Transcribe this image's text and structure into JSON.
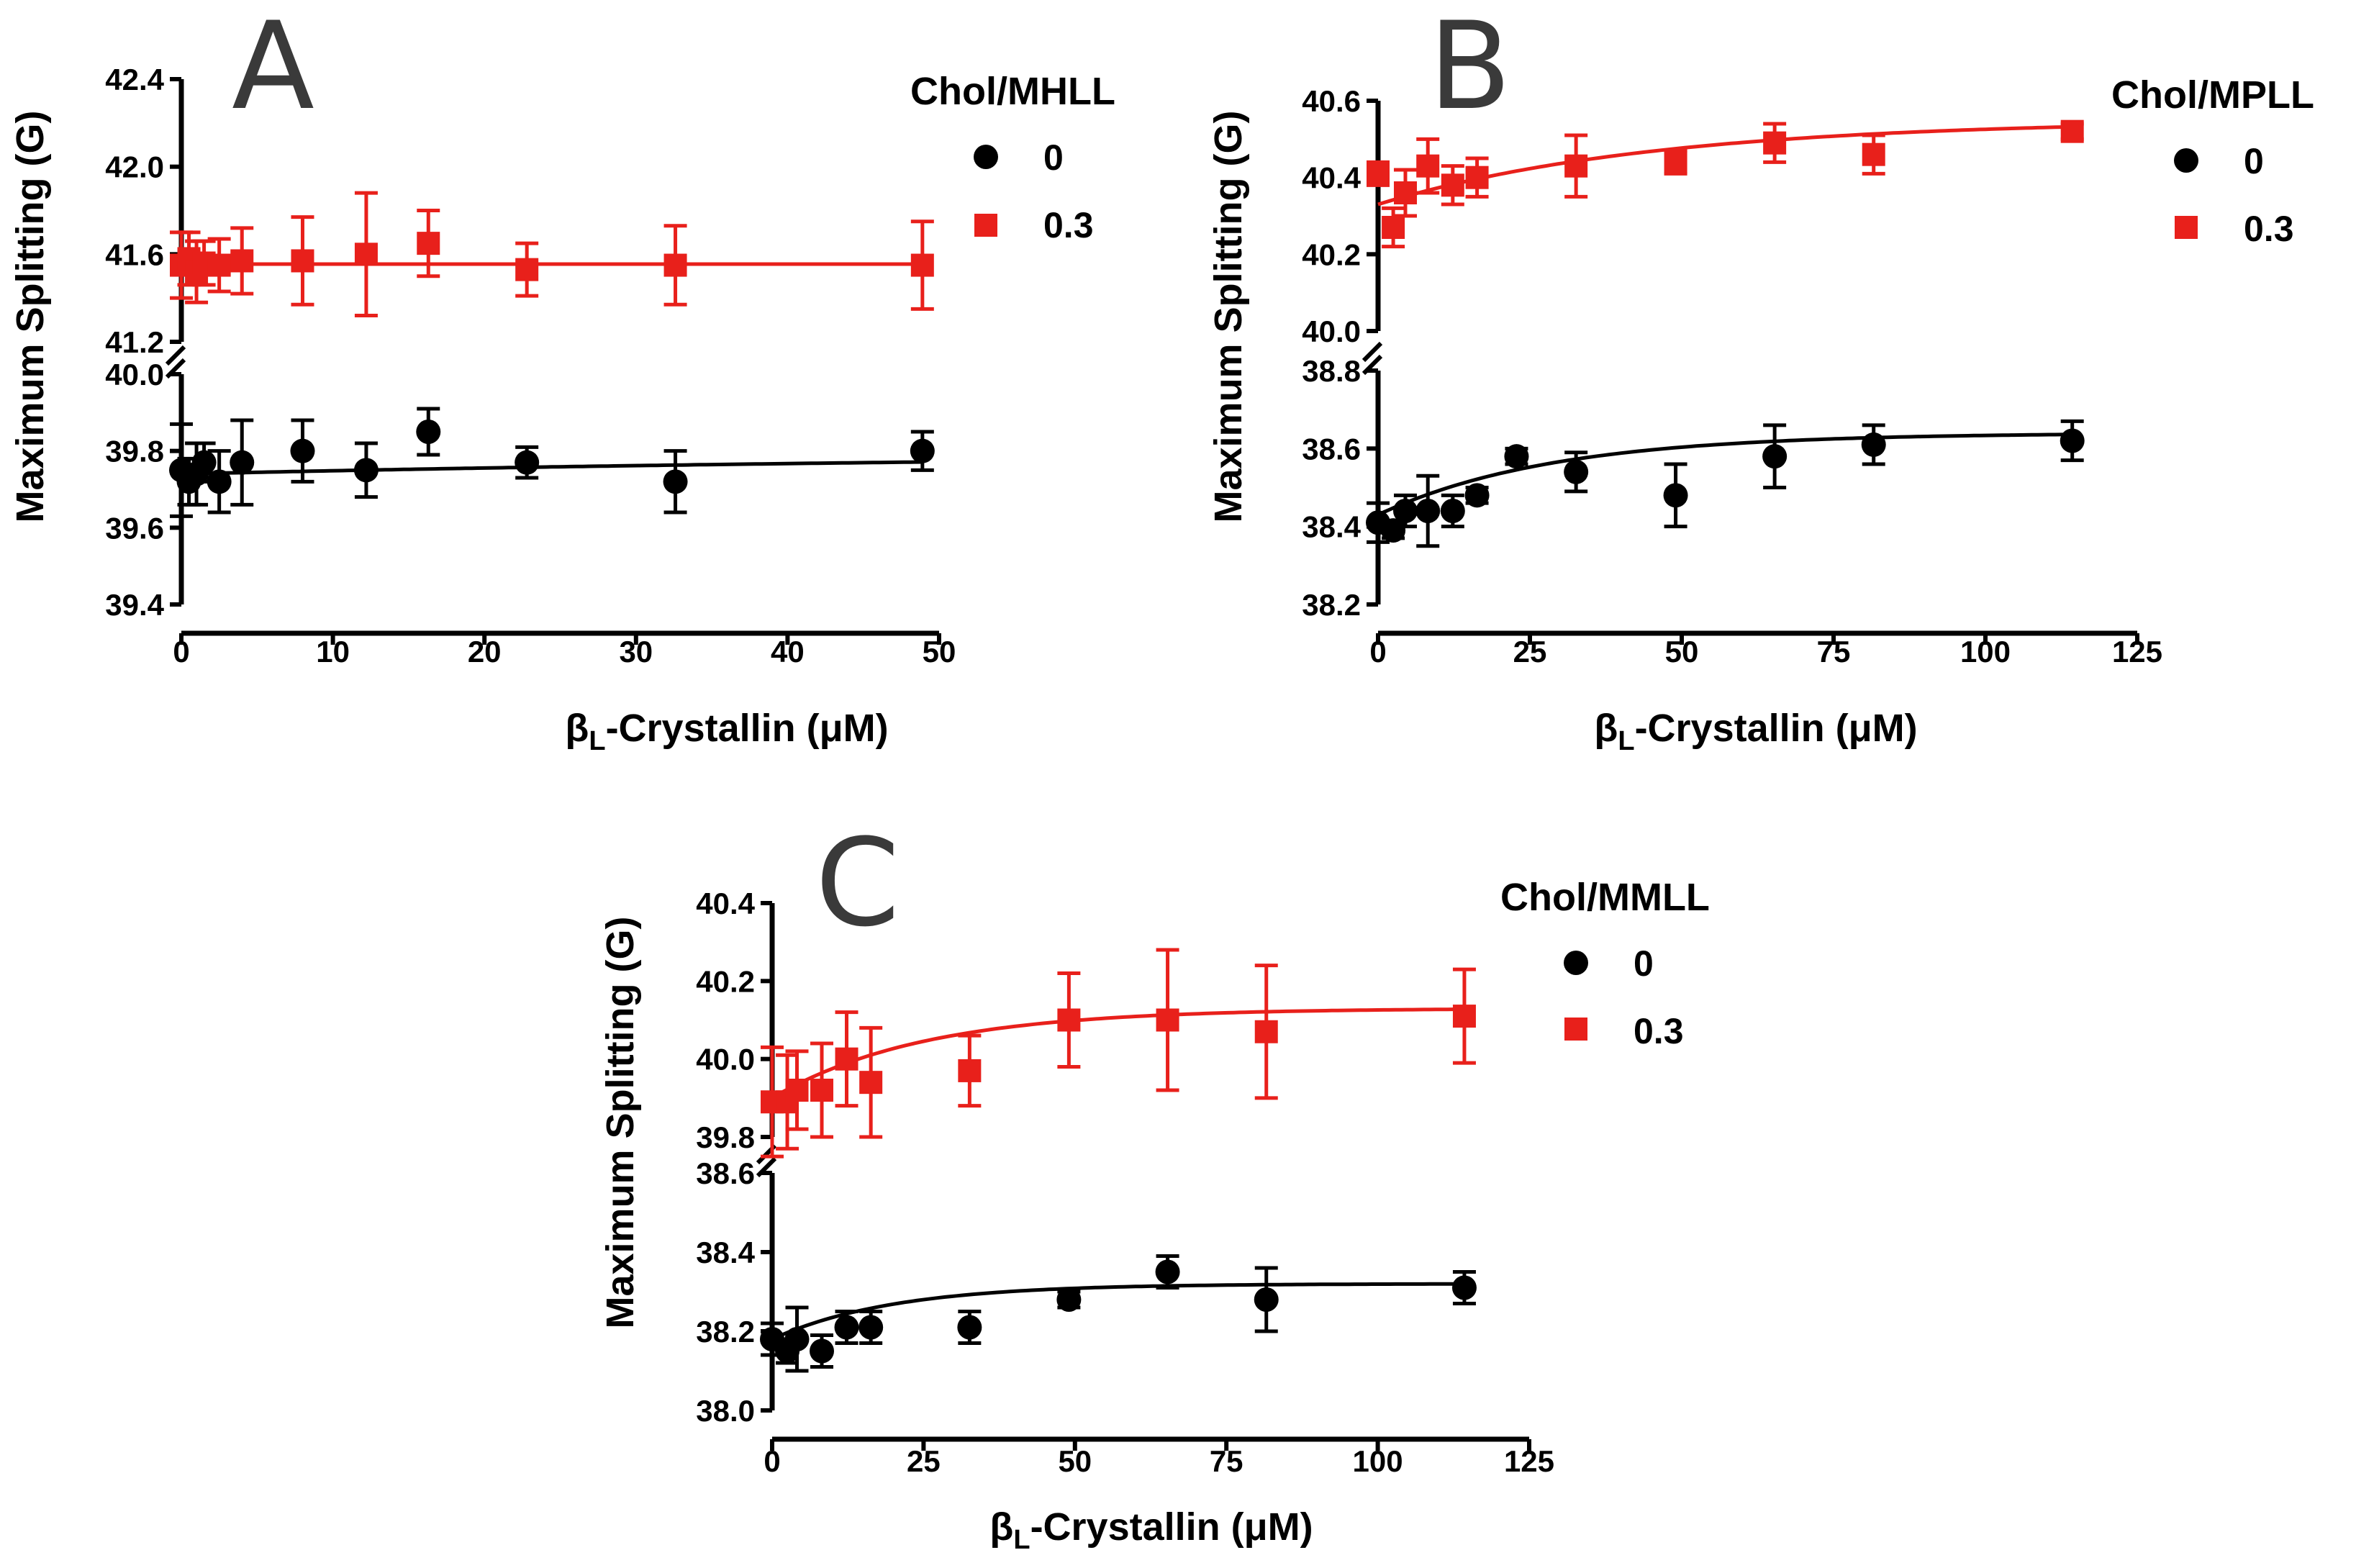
{
  "colors": {
    "series0": "#000000",
    "series03": "#e8201b",
    "axis": "#000000",
    "panel_letter": "#3a3a3a"
  },
  "chart_data": [
    {
      "panel": "A",
      "type": "scatter",
      "legend_title": "Chol/MHLL",
      "legend_position": "top-right",
      "xlabel": {
        "main": "β",
        "sub": "L",
        "rest": "-Crystallin (μM)"
      },
      "ylabel": "Maximum Splitting (G)",
      "xlim": [
        0,
        50
      ],
      "x_ticks": [
        "0",
        "10",
        "20",
        "30",
        "40",
        "50"
      ],
      "y_break": true,
      "ylim_lower": [
        39.4,
        40.0
      ],
      "y_ticks_lower": [
        "39.4",
        "39.6",
        "39.8",
        "40.0"
      ],
      "ylim_upper": [
        41.2,
        42.4
      ],
      "y_ticks_upper": [
        "41.2",
        "41.6",
        "42.0",
        "42.4"
      ],
      "series": [
        {
          "name": "0",
          "marker": "circle",
          "color": "#000000",
          "segment": "lower",
          "points": [
            {
              "x": 0,
              "y": 39.75,
              "err": 0.12
            },
            {
              "x": 0.5,
              "y": 39.72,
              "err": 0.06
            },
            {
              "x": 1,
              "y": 39.74,
              "err": 0.08
            },
            {
              "x": 1.5,
              "y": 39.77,
              "err": 0.05
            },
            {
              "x": 2.5,
              "y": 39.72,
              "err": 0.08
            },
            {
              "x": 4,
              "y": 39.77,
              "err": 0.11
            },
            {
              "x": 8,
              "y": 39.8,
              "err": 0.08
            },
            {
              "x": 12.2,
              "y": 39.75,
              "err": 0.07
            },
            {
              "x": 16.3,
              "y": 39.85,
              "err": 0.06
            },
            {
              "x": 22.8,
              "y": 39.77,
              "err": 0.04
            },
            {
              "x": 32.6,
              "y": 39.72,
              "err": 0.08
            },
            {
              "x": 48.9,
              "y": 39.8,
              "err": 0.05
            }
          ],
          "fit": {
            "y0": 39.74,
            "ymax": 39.8,
            "k": 0.015
          }
        },
        {
          "name": "0.3",
          "marker": "square",
          "color": "#e8201b",
          "segment": "upper",
          "points": [
            {
              "x": 0,
              "y": 41.55,
              "err": 0.15
            },
            {
              "x": 0.5,
              "y": 41.58,
              "err": 0.12
            },
            {
              "x": 1,
              "y": 41.52,
              "err": 0.14
            },
            {
              "x": 1.5,
              "y": 41.56,
              "err": 0.1
            },
            {
              "x": 2.5,
              "y": 41.55,
              "err": 0.12
            },
            {
              "x": 4,
              "y": 41.57,
              "err": 0.15
            },
            {
              "x": 8,
              "y": 41.57,
              "err": 0.2
            },
            {
              "x": 12.2,
              "y": 41.6,
              "err": 0.28
            },
            {
              "x": 16.3,
              "y": 41.65,
              "err": 0.15
            },
            {
              "x": 22.8,
              "y": 41.53,
              "err": 0.12
            },
            {
              "x": 32.6,
              "y": 41.55,
              "err": 0.18
            },
            {
              "x": 48.9,
              "y": 41.55,
              "err": 0.2
            }
          ],
          "fit": {
            "y0": 41.555,
            "ymax": 41.555,
            "k": 0.1
          }
        }
      ]
    },
    {
      "panel": "B",
      "type": "scatter",
      "legend_title": "Chol/MPLL",
      "legend_position": "top-right",
      "xlabel": {
        "main": "β",
        "sub": "L",
        "rest": "-Crystallin (μM)"
      },
      "ylabel": "Maximum Splitting (G)",
      "xlim": [
        0,
        125
      ],
      "x_ticks": [
        "0",
        "25",
        "50",
        "75",
        "100",
        "125"
      ],
      "y_break": true,
      "ylim_lower": [
        38.2,
        38.8
      ],
      "y_ticks_lower": [
        "38.2",
        "38.4",
        "38.6",
        "38.8"
      ],
      "ylim_upper": [
        40.0,
        40.6
      ],
      "y_ticks_upper": [
        "40.0",
        "40.2",
        "40.4",
        "40.6"
      ],
      "series": [
        {
          "name": "0",
          "marker": "circle",
          "color": "#000000",
          "segment": "lower",
          "points": [
            {
              "x": 0,
              "y": 38.41,
              "err": 0.05
            },
            {
              "x": 2.5,
              "y": 38.39,
              "err": 0.02
            },
            {
              "x": 4.5,
              "y": 38.44,
              "err": 0.04
            },
            {
              "x": 8.2,
              "y": 38.44,
              "err": 0.09
            },
            {
              "x": 12.3,
              "y": 38.44,
              "err": 0.04
            },
            {
              "x": 16.3,
              "y": 38.48,
              "err": 0.02
            },
            {
              "x": 22.8,
              "y": 38.58,
              "err": 0.02
            },
            {
              "x": 32.6,
              "y": 38.54,
              "err": 0.05
            },
            {
              "x": 49,
              "y": 38.48,
              "err": 0.08
            },
            {
              "x": 65.3,
              "y": 38.58,
              "err": 0.08
            },
            {
              "x": 81.6,
              "y": 38.61,
              "err": 0.05
            },
            {
              "x": 114.3,
              "y": 38.62,
              "err": 0.05
            }
          ],
          "fit": {
            "y0": 38.43,
            "ymax": 38.64,
            "k": 0.035
          }
        },
        {
          "name": "0.3",
          "marker": "square",
          "color": "#e8201b",
          "segment": "upper",
          "points": [
            {
              "x": 0,
              "y": 40.41,
              "err": 0.03
            },
            {
              "x": 2.5,
              "y": 40.27,
              "err": 0.05
            },
            {
              "x": 4.5,
              "y": 40.36,
              "err": 0.06
            },
            {
              "x": 8.2,
              "y": 40.43,
              "err": 0.07
            },
            {
              "x": 12.3,
              "y": 40.38,
              "err": 0.05
            },
            {
              "x": 16.3,
              "y": 40.4,
              "err": 0.05
            },
            {
              "x": 32.6,
              "y": 40.43,
              "err": 0.08
            },
            {
              "x": 49,
              "y": 40.44,
              "err": 0.03
            },
            {
              "x": 65.3,
              "y": 40.49,
              "err": 0.05
            },
            {
              "x": 81.6,
              "y": 40.46,
              "err": 0.05
            },
            {
              "x": 114.3,
              "y": 40.52,
              "err": 0.02
            }
          ],
          "fit": {
            "y0": 40.33,
            "ymax": 40.55,
            "k": 0.022
          }
        }
      ]
    },
    {
      "panel": "C",
      "type": "scatter",
      "legend_title": "Chol/MMLL",
      "legend_position": "top-right",
      "xlabel": {
        "main": "β",
        "sub": "L",
        "rest": "-Crystallin (μM)"
      },
      "ylabel": "Maximum Splitting (G)",
      "xlim": [
        0,
        125
      ],
      "x_ticks": [
        "0",
        "25",
        "50",
        "75",
        "100",
        "125"
      ],
      "y_break": true,
      "ylim_lower": [
        38.0,
        38.6
      ],
      "y_ticks_lower": [
        "38.0",
        "38.2",
        "38.4",
        "38.6"
      ],
      "ylim_upper": [
        39.8,
        40.4
      ],
      "y_ticks_upper": [
        "39.8",
        "40.0",
        "40.2",
        "40.4"
      ],
      "series": [
        {
          "name": "0",
          "marker": "circle",
          "color": "#000000",
          "segment": "lower",
          "points": [
            {
              "x": 0,
              "y": 38.18,
              "err": 0.04
            },
            {
              "x": 2.5,
              "y": 38.15,
              "err": 0.03
            },
            {
              "x": 4.1,
              "y": 38.18,
              "err": 0.08
            },
            {
              "x": 8.2,
              "y": 38.15,
              "err": 0.04
            },
            {
              "x": 12.3,
              "y": 38.21,
              "err": 0.04
            },
            {
              "x": 16.3,
              "y": 38.21,
              "err": 0.04
            },
            {
              "x": 32.6,
              "y": 38.21,
              "err": 0.04
            },
            {
              "x": 49,
              "y": 38.28,
              "err": 0.02
            },
            {
              "x": 65.3,
              "y": 38.35,
              "err": 0.04
            },
            {
              "x": 81.6,
              "y": 38.28,
              "err": 0.08
            },
            {
              "x": 114.3,
              "y": 38.31,
              "err": 0.04
            }
          ],
          "fit": {
            "y0": 38.18,
            "ymax": 38.32,
            "k": 0.05
          }
        },
        {
          "name": "0.3",
          "marker": "square",
          "color": "#e8201b",
          "segment": "upper",
          "points": [
            {
              "x": 0,
              "y": 39.89,
              "err": 0.14
            },
            {
              "x": 2.5,
              "y": 39.89,
              "err": 0.12
            },
            {
              "x": 4.1,
              "y": 39.92,
              "err": 0.1
            },
            {
              "x": 8.2,
              "y": 39.92,
              "err": 0.12
            },
            {
              "x": 12.3,
              "y": 40.0,
              "err": 0.12
            },
            {
              "x": 16.3,
              "y": 39.94,
              "err": 0.14
            },
            {
              "x": 32.6,
              "y": 39.97,
              "err": 0.09
            },
            {
              "x": 49,
              "y": 40.1,
              "err": 0.12
            },
            {
              "x": 65.3,
              "y": 40.1,
              "err": 0.18
            },
            {
              "x": 81.6,
              "y": 40.07,
              "err": 0.17
            },
            {
              "x": 114.3,
              "y": 40.11,
              "err": 0.12
            }
          ],
          "fit": {
            "y0": 39.9,
            "ymax": 40.13,
            "k": 0.04
          }
        }
      ]
    }
  ]
}
